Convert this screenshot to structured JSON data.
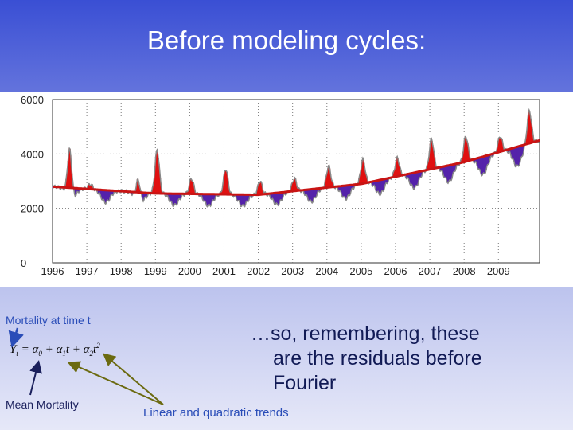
{
  "slide": {
    "title": "Before modeling cycles:",
    "mortality_label": "Mortality at time t",
    "mean_label": "Mean Mortality",
    "trend_label": "Linear and quadratic trends",
    "remark_line1": "…so, remembering, these",
    "remark_line2": "are the residuals before",
    "remark_line3": "Fourier",
    "formula": "Y_t = α_0 + α_1 t + α_2 t^2",
    "arrow_color": "#6b6a10",
    "mortality_arrow_color": "#2a4db8"
  },
  "chart_data": {
    "type": "bar",
    "title": "",
    "xlabel": "",
    "ylabel": "",
    "xlim": [
      1996,
      2010.2
    ],
    "ylim": [
      0,
      6000
    ],
    "yticks": [
      "0",
      "2000",
      "4000",
      "6000"
    ],
    "xticks": [
      "1996",
      "1997",
      "1998",
      "1999",
      "2000",
      "2001",
      "2002",
      "2003",
      "2004",
      "2005",
      "2006",
      "2007",
      "2008",
      "2009"
    ],
    "grid": true,
    "colors": {
      "above_trend": "#e01010",
      "below_trend": "#5522aa",
      "trend": "#c81414",
      "observed": "#888888"
    },
    "trend": {
      "x": [
        1996,
        1999,
        2002,
        2005,
        2008,
        2010.2
      ],
      "y": [
        2800,
        2550,
        2500,
        2900,
        3700,
        4500
      ]
    },
    "annual_peaks": [
      {
        "year": 1996,
        "peak_x": 1996.5,
        "peak_y": 4600
      },
      {
        "year": 1997,
        "peak_x": 1997.1,
        "peak_y": 2900
      },
      {
        "year": 1998,
        "peak_x": 1998.5,
        "peak_y": 3450
      },
      {
        "year": 1999,
        "peak_x": 1999.05,
        "peak_y": 4150
      },
      {
        "year": 2000,
        "peak_x": 2000.05,
        "peak_y": 3100
      },
      {
        "year": 2001,
        "peak_x": 2001.05,
        "peak_y": 3450
      },
      {
        "year": 2002,
        "peak_x": 2002.05,
        "peak_y": 3000
      },
      {
        "year": 2003,
        "peak_x": 2003.05,
        "peak_y": 3100
      },
      {
        "year": 2004,
        "peak_x": 2004.05,
        "peak_y": 3550
      },
      {
        "year": 2005,
        "peak_x": 2005.05,
        "peak_y": 3800
      },
      {
        "year": 2006,
        "peak_x": 2006.05,
        "peak_y": 3850
      },
      {
        "year": 2007,
        "peak_x": 2007.05,
        "peak_y": 4550
      },
      {
        "year": 2008,
        "peak_x": 2008.05,
        "peak_y": 4650
      },
      {
        "year": 2009,
        "peak_x": 2009.05,
        "peak_y": 4650
      },
      {
        "year": 2010,
        "peak_x": 2009.9,
        "peak_y": 5600
      }
    ]
  }
}
